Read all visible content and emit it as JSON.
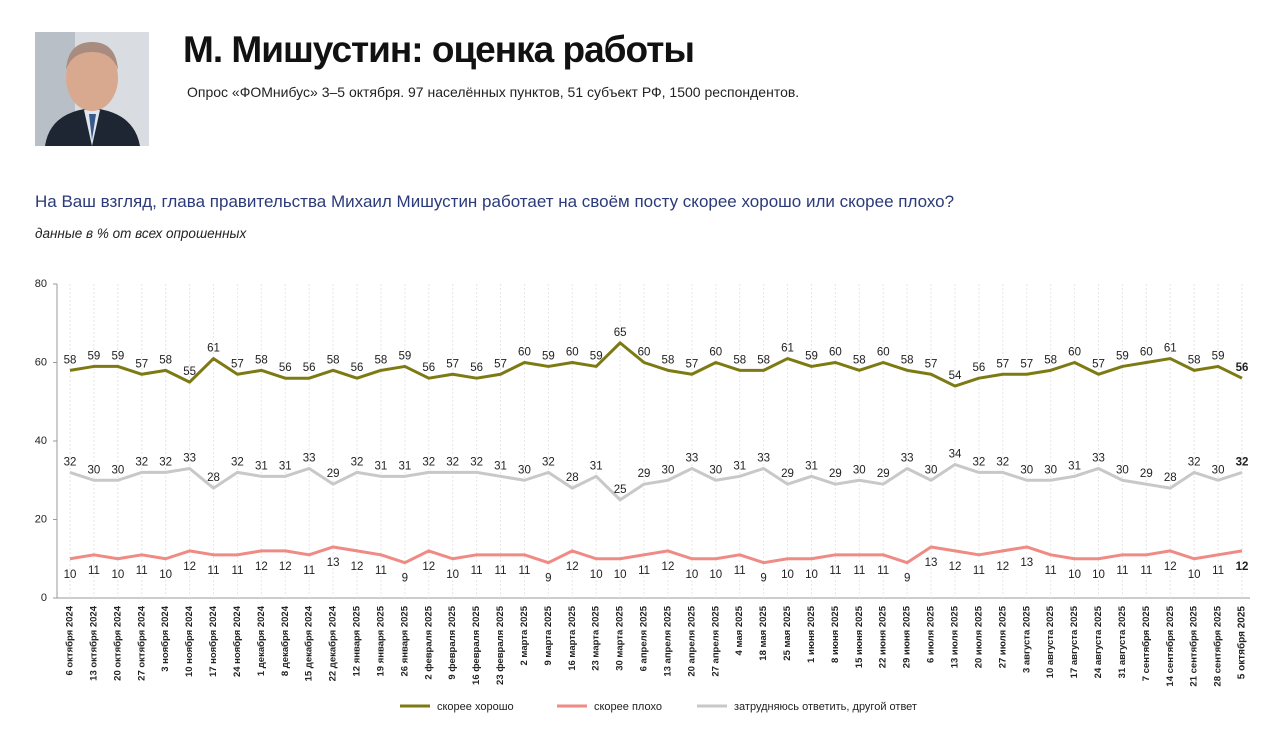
{
  "chart_data": {
    "type": "line",
    "title": "М. Мишустин: оценка работы",
    "subtitle": "Опрос «ФОМнибус» 3–5 октября. 97 населённых пунктов, 51 субъект РФ, 1500 респондентов.",
    "question": "На Ваш взгляд, глава правительства Михаил Мишустин работает на своём посту скорее хорошо или скорее плохо?",
    "note": "данные в % от всех опрошенных",
    "categories": [
      "6 октября 2024",
      "13 октября 2024",
      "20 октября 2024",
      "27 октября 2024",
      "3 ноября 2024",
      "10 ноября 2024",
      "17 ноября 2024",
      "24 ноября 2024",
      "1 декабря 2024",
      "8 декабря 2024",
      "15 декабря 2024",
      "22 декабря 2024",
      "12 января 2025",
      "19 января 2025",
      "26 января 2025",
      "2 февраля 2025",
      "9 февраля 2025",
      "16 февраля 2025",
      "23 февраля 2025",
      "2 марта 2025",
      "9 марта 2025",
      "16 марта 2025",
      "23 марта 2025",
      "30 марта 2025",
      "6 апреля 2025",
      "13 апреля 2025",
      "20 апреля 2025",
      "27 апреля 2025",
      "4 мая 2025",
      "18 мая 2025",
      "25 мая 2025",
      "1 июня 2025",
      "8 июня 2025",
      "15 июня 2025",
      "22 июня 2025",
      "29 июня 2025",
      "6 июля 2025",
      "13 июля 2025",
      "20 июля 2025",
      "27 июля 2025",
      "3 августа 2025",
      "10 августа 2025",
      "17 августа 2025",
      "24 августа 2025",
      "31 августа 2025",
      "7 сентября 2025",
      "14 сентября 2025",
      "21 сентября 2025",
      "28 сентября 2025",
      "5 октября 2025"
    ],
    "series": [
      {
        "name": "скорее хорошо",
        "color": "#7d7a14",
        "values": [
          58,
          59,
          59,
          57,
          58,
          55,
          61,
          57,
          58,
          56,
          56,
          58,
          56,
          58,
          59,
          56,
          57,
          56,
          57,
          60,
          59,
          60,
          59,
          65,
          60,
          58,
          57,
          60,
          58,
          58,
          61,
          59,
          60,
          58,
          60,
          58,
          57,
          54,
          56,
          57,
          57,
          58,
          60,
          57,
          59,
          60,
          61,
          58,
          59,
          56
        ]
      },
      {
        "name": "скорее плохо",
        "color": "#ef8a84",
        "values": [
          10,
          11,
          10,
          11,
          10,
          12,
          11,
          11,
          12,
          12,
          11,
          13,
          12,
          11,
          9,
          12,
          10,
          11,
          11,
          11,
          9,
          12,
          10,
          10,
          11,
          12,
          10,
          10,
          11,
          9,
          10,
          10,
          11,
          11,
          11,
          9,
          13,
          12,
          11,
          12,
          13,
          11,
          10,
          10,
          11,
          11,
          12,
          10,
          11,
          12
        ]
      },
      {
        "name": "затрудняюсь ответить, другой ответ",
        "color": "#c8c8c8",
        "values": [
          32,
          30,
          30,
          32,
          32,
          33,
          28,
          32,
          31,
          31,
          33,
          29,
          32,
          31,
          31,
          32,
          32,
          32,
          31,
          30,
          32,
          28,
          31,
          25,
          29,
          30,
          33,
          30,
          31,
          33,
          29,
          31,
          29,
          30,
          29,
          33,
          30,
          34,
          32,
          32,
          30,
          30,
          31,
          33,
          30,
          29,
          28,
          32,
          30,
          32
        ]
      }
    ],
    "ylim": [
      0,
      80
    ],
    "yticks": [
      0,
      20,
      40,
      60,
      80
    ],
    "grid": true
  }
}
